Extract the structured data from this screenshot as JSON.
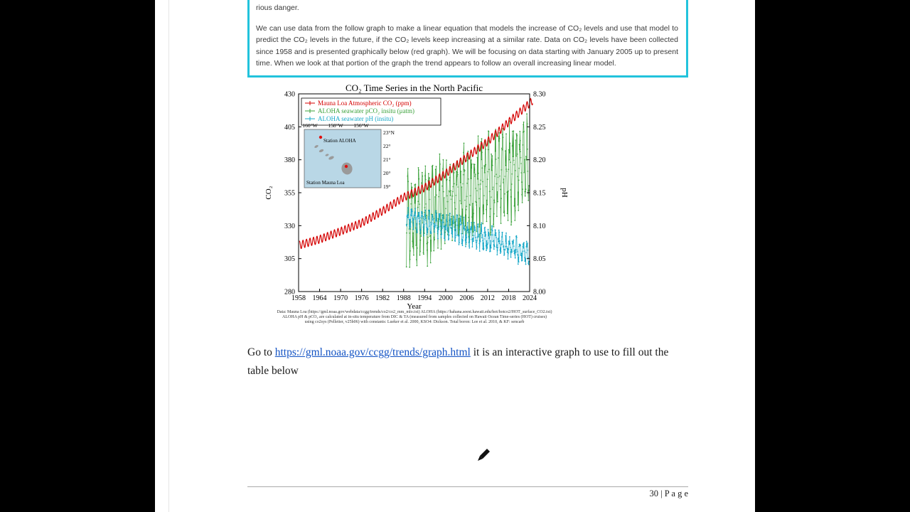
{
  "page": {
    "number_text": "30 | P a g e"
  },
  "document": {
    "fragment_top": "rious danger.",
    "highlight_border_color": "#22c3dc",
    "paragraph": "We can use data from the follow graph to make a linear equation that models the increase of CO₂ levels and use that model to predict the CO₂ levels in the future, if the CO₂ levels keep increasing at a similar rate. Data on CO₂ levels have been collected since 1958 and is presented graphically below (red graph). We will be focusing on data starting with January 2005 up to present time. When we look at that portion of the graph the trend appears to follow an overall increasing linear model.",
    "goto_prefix": "Go to ",
    "link_text": "https://gml.noaa.gov/ccgg/trends/graph.html",
    "goto_suffix": " it is an interactive graph to use to fill out the table below"
  },
  "chart_data": {
    "type": "line",
    "title": "CO₂ Time Series in the North Pacific",
    "xlabel": "Year",
    "ylabel_left": "CO₂",
    "ylabel_right": "pH",
    "xlim": [
      1958,
      2024
    ],
    "xticks": [
      1958,
      1964,
      1970,
      1976,
      1982,
      1988,
      1994,
      2000,
      2006,
      2012,
      2018,
      2024
    ],
    "ylim_left": [
      280,
      430
    ],
    "yticks_left": [
      280,
      305,
      330,
      355,
      380,
      405,
      430
    ],
    "ylim_right": [
      8.0,
      8.3
    ],
    "yticks_right": [
      "8.00",
      "8.05",
      "8.10",
      "8.15",
      "8.20",
      "8.25",
      "8.30"
    ],
    "grid": false,
    "legend_position": "upper-left-inside",
    "legend": [
      {
        "label": "Mauna Loa Atmospheric CO₂ (ppm)",
        "color": "#d40000"
      },
      {
        "label": "ALOHA seawater pCO₂ insitu (μatm)",
        "color": "#3aa13a"
      },
      {
        "label": "ALOHA seawater pH (insitu)",
        "color": "#18a8c8"
      }
    ],
    "series": [
      {
        "name": "aloha_pco2",
        "label": "ALOHA seawater pCO₂ insitu (μatm)",
        "axis": "left",
        "color": "#3aa13a",
        "points_per_year": 12,
        "seasonal_amplitude": 26,
        "noise": 16,
        "seed": 7,
        "markers": true,
        "anchors": [
          [
            1988.8,
            332
          ],
          [
            1995,
            340
          ],
          [
            2001,
            348
          ],
          [
            2007,
            356
          ],
          [
            2013,
            364
          ],
          [
            2019,
            372
          ],
          [
            2023.8,
            376
          ]
        ]
      },
      {
        "name": "aloha_ph",
        "label": "ALOHA seawater pH (insitu)",
        "axis": "right",
        "color": "#18a8c8",
        "points_per_year": 12,
        "seasonal_amplitude": 0.013,
        "noise": 0.01,
        "seed": 3,
        "markers": true,
        "anchors": [
          [
            1988.8,
            8.112
          ],
          [
            1995,
            8.105
          ],
          [
            2001,
            8.097
          ],
          [
            2007,
            8.088
          ],
          [
            2013,
            8.078
          ],
          [
            2019,
            8.067
          ],
          [
            2023.8,
            8.058
          ]
        ]
      },
      {
        "name": "mauna_loa_co2",
        "label": "Mauna Loa Atmospheric CO₂ (ppm)",
        "axis": "left",
        "color": "#d40000",
        "points_per_year": 12,
        "seasonal_amplitude": 3,
        "noise": 0,
        "seed": 1,
        "markers": false,
        "anchors": [
          [
            1958.2,
            315.2
          ],
          [
            1964,
            319.6
          ],
          [
            1970,
            325.7
          ],
          [
            1976,
            332.0
          ],
          [
            1982,
            341.1
          ],
          [
            1988,
            351.5
          ],
          [
            1994,
            358.8
          ],
          [
            2000,
            369.5
          ],
          [
            2006,
            381.9
          ],
          [
            2012,
            393.8
          ],
          [
            2018,
            408.5
          ],
          [
            2024.9,
            425.0
          ]
        ]
      }
    ],
    "inset_map": {
      "lon_labels": [
        "160°W",
        "158°W",
        "156°W"
      ],
      "lat_labels": [
        "23°N",
        "22°",
        "21°",
        "20°",
        "19°"
      ],
      "station_aloha_label": "Station ALOHA",
      "station_mauna_loa_label": "Station Mauna Loa",
      "sea_color": "#b9d7e6",
      "land_color": "#9a9a9a",
      "marker_color": "#e01010"
    },
    "caption_lines": [
      "Data: Mauna Loa (https://gml.noaa.gov/webdata/ccgg/trends/co2/co2_mm_mlo.txt)  ALOHA (https://hahana.soest.hawaii.edu/hot/hotco2/HOT_surface_CO2.txt)",
      "ALOHA pH & pCO₂ are calculated at in-situ temperature from DIC & TA (measured from samples collected on Hawaii Ocean Time-series (HOT) cruises)",
      "using co2sys (Pelletier, v25b06) with constants: Lueker et al. 2000, KSO4: Dickson. Total boron: Lee et al. 2010, & KF: sencarb"
    ]
  }
}
